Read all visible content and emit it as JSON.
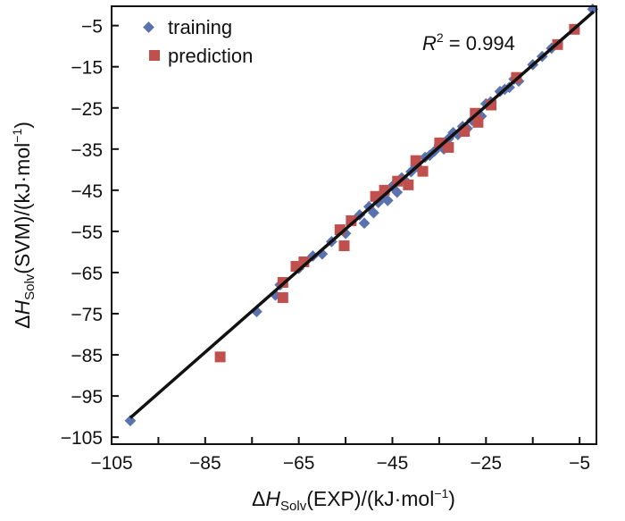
{
  "chart_data": {
    "type": "scatter",
    "xlabel": {
      "delta": "Δ",
      "var": "H",
      "sub": "Solv",
      "main": "(EXP)/(kJ·mol",
      "sup": "−1",
      "close": ")"
    },
    "ylabel": {
      "delta": "Δ",
      "var": "H",
      "sub": "Solv",
      "main": "(SVM)/(kJ·mol",
      "sup": "−1",
      "close": ")"
    },
    "xlim": [
      -105,
      -1.4
    ],
    "ylim": [
      -106.7,
      -0.3
    ],
    "x_ticks": [
      -105,
      -85,
      -65,
      -45,
      -25,
      -5
    ],
    "x_tick_labels": [
      "−105",
      "−85",
      "−65",
      "−45",
      "−25",
      "−5"
    ],
    "x_minor_ticks": [
      -95,
      -75,
      -55,
      -35,
      -15
    ],
    "y_ticks": [
      -5,
      -15,
      -25,
      -35,
      -45,
      -55,
      -65,
      -75,
      -85,
      -95,
      -105
    ],
    "y_tick_labels": [
      "−5",
      "−15",
      "−25",
      "−35",
      "−45",
      "−55",
      "−65",
      "−75",
      "−85",
      "−95",
      "−105"
    ],
    "grid": false,
    "legend_position": "top-left",
    "annotation": {
      "var": "R",
      "sup": "2",
      "text": " = 0.994"
    },
    "fit_line": {
      "x": [
        -101,
        -2
      ],
      "y": [
        -100.3,
        -1.6
      ],
      "color": "#111111"
    },
    "series": [
      {
        "name": "training",
        "marker": "diamond",
        "color": "#5a72ae",
        "points": [
          [
            -101,
            -101
          ],
          [
            -2.2,
            -1
          ],
          [
            -74,
            -74.5
          ],
          [
            -70,
            -70.5
          ],
          [
            -69,
            -68
          ],
          [
            -65,
            -64
          ],
          [
            -62,
            -61
          ],
          [
            -60,
            -60.5
          ],
          [
            -58,
            -57.5
          ],
          [
            -55,
            -55.5
          ],
          [
            -52,
            -51
          ],
          [
            -51,
            -53
          ],
          [
            -50,
            -49
          ],
          [
            -49,
            -50.5
          ],
          [
            -48,
            -48
          ],
          [
            -47,
            -46.5
          ],
          [
            -46,
            -47.5
          ],
          [
            -45,
            -44
          ],
          [
            -44,
            -45.5
          ],
          [
            -43,
            -42
          ],
          [
            -42,
            -43
          ],
          [
            -41,
            -40.5
          ],
          [
            -40,
            -39
          ],
          [
            -39,
            -40
          ],
          [
            -38,
            -37
          ],
          [
            -37,
            -36.5
          ],
          [
            -36,
            -35.5
          ],
          [
            -35,
            -34
          ],
          [
            -34,
            -35
          ],
          [
            -33,
            -32.5
          ],
          [
            -32,
            -31
          ],
          [
            -31,
            -31.5
          ],
          [
            -30,
            -29.5
          ],
          [
            -29,
            -30
          ],
          [
            -28,
            -28
          ],
          [
            -27,
            -26.5
          ],
          [
            -26,
            -27
          ],
          [
            -25,
            -24
          ],
          [
            -24,
            -23.5
          ],
          [
            -22,
            -21
          ],
          [
            -21,
            -20.5
          ],
          [
            -20,
            -20
          ],
          [
            -19,
            -18
          ],
          [
            -18,
            -18.5
          ],
          [
            -15,
            -14.5
          ],
          [
            -13,
            -12.5
          ],
          [
            -11,
            -10.5
          ]
        ]
      },
      {
        "name": "prediction",
        "marker": "square",
        "color": "#c0504d",
        "points": [
          [
            -6.1,
            -5.9
          ],
          [
            -9.7,
            -9.6
          ],
          [
            -18.5,
            -17.6
          ],
          [
            -23.9,
            -24.3
          ],
          [
            -27.3,
            -26.3
          ],
          [
            -26.7,
            -28.5
          ],
          [
            -29.6,
            -30.7
          ],
          [
            -34.9,
            -33.5
          ],
          [
            -33,
            -34.6
          ],
          [
            -40,
            -37.8
          ],
          [
            -38.5,
            -40.4
          ],
          [
            -43.9,
            -42.8
          ],
          [
            -41.6,
            -43.7
          ],
          [
            -46.7,
            -45
          ],
          [
            -48.6,
            -46.5
          ],
          [
            -53.8,
            -52.4
          ],
          [
            -56.2,
            -54.6
          ],
          [
            -55.3,
            -58.5
          ],
          [
            -65.6,
            -63.5
          ],
          [
            -63.9,
            -62.4
          ],
          [
            -68.4,
            -67.4
          ],
          [
            -68.4,
            -71.1
          ],
          [
            -81.8,
            -85.5
          ]
        ]
      }
    ]
  }
}
